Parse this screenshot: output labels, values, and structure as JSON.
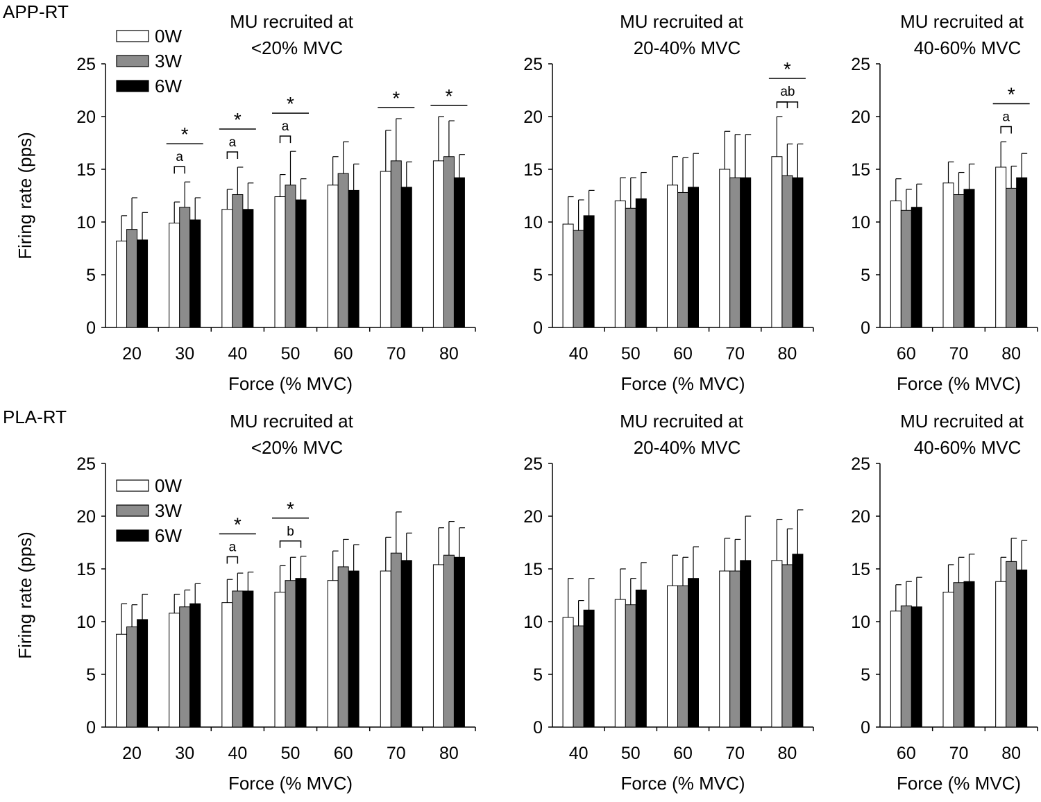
{
  "colors": {
    "0W": "#ffffff",
    "3W": "#8c8c8c",
    "6W": "#000000",
    "stroke": "#000000"
  },
  "rows": [
    {
      "label": "APP-RT"
    },
    {
      "label": "PLA-RT"
    }
  ],
  "chart_data": [
    {
      "type": "bar",
      "row": "APP-RT",
      "title": [
        "MU recruited at",
        "<20% MVC"
      ],
      "xlabel": "Force (% MVC)",
      "ylabel": "Firing rate (pps)",
      "ylim": [
        0,
        25
      ],
      "yticks": [
        0,
        5,
        10,
        15,
        20,
        25
      ],
      "categories": [
        "20",
        "30",
        "40",
        "50",
        "60",
        "70",
        "80"
      ],
      "legend": [
        "0W",
        "3W",
        "6W"
      ],
      "series": [
        {
          "name": "0W",
          "values": [
            8.2,
            9.9,
            11.2,
            12.4,
            13.5,
            14.8,
            15.8
          ],
          "errors": [
            2.4,
            2.0,
            1.9,
            2.1,
            2.7,
            3.9,
            4.2
          ]
        },
        {
          "name": "3W",
          "values": [
            9.3,
            11.4,
            12.6,
            13.5,
            14.6,
            15.8,
            16.2
          ],
          "errors": [
            3.0,
            2.4,
            2.6,
            3.2,
            3.0,
            4.0,
            3.4
          ]
        },
        {
          "name": "6W",
          "values": [
            8.3,
            10.2,
            11.2,
            12.1,
            13.0,
            13.3,
            14.2
          ],
          "errors": [
            2.6,
            2.1,
            2.5,
            2.0,
            2.5,
            2.4,
            2.2
          ]
        }
      ],
      "annotations": [
        {
          "cat": 1,
          "star": "*",
          "letter": "a",
          "pair": "0W-3W"
        },
        {
          "cat": 2,
          "star": "*",
          "letter": "a",
          "pair": "0W-3W"
        },
        {
          "cat": 3,
          "star": "*",
          "letter": "a",
          "pair": "0W-3W"
        },
        {
          "cat": 5,
          "star": "*"
        },
        {
          "cat": 6,
          "star": "*"
        }
      ]
    },
    {
      "type": "bar",
      "row": "APP-RT",
      "title": [
        "MU recruited at",
        "20-40% MVC"
      ],
      "xlabel": "Force (% MVC)",
      "ylabel": "",
      "ylim": [
        0,
        25
      ],
      "yticks": [
        0,
        5,
        10,
        15,
        20,
        25
      ],
      "categories": [
        "40",
        "50",
        "60",
        "70",
        "80"
      ],
      "series": [
        {
          "name": "0W",
          "values": [
            9.8,
            12.0,
            13.5,
            15.0,
            16.2
          ],
          "errors": [
            2.6,
            2.2,
            2.7,
            3.6,
            3.8
          ]
        },
        {
          "name": "3W",
          "values": [
            9.2,
            11.3,
            12.8,
            14.2,
            14.4
          ],
          "errors": [
            2.9,
            2.9,
            3.3,
            4.1,
            3.0
          ]
        },
        {
          "name": "6W",
          "values": [
            10.6,
            12.2,
            13.3,
            14.2,
            14.2
          ],
          "errors": [
            2.4,
            2.5,
            3.2,
            4.1,
            3.2
          ]
        }
      ],
      "annotations": [
        {
          "cat": 4,
          "star": "*",
          "letter": "ab",
          "pair": "double"
        }
      ]
    },
    {
      "type": "bar",
      "row": "APP-RT",
      "title": [
        "MU recruited at",
        "40-60% MVC"
      ],
      "xlabel": "Force (% MVC)",
      "ylabel": "",
      "ylim": [
        0,
        25
      ],
      "yticks": [
        0,
        5,
        10,
        15,
        20,
        25
      ],
      "categories": [
        "60",
        "70",
        "80"
      ],
      "series": [
        {
          "name": "0W",
          "values": [
            12.0,
            13.7,
            15.2
          ],
          "errors": [
            2.1,
            2.0,
            2.4
          ]
        },
        {
          "name": "3W",
          "values": [
            11.1,
            12.6,
            13.2
          ],
          "errors": [
            2.0,
            2.1,
            2.1
          ]
        },
        {
          "name": "6W",
          "values": [
            11.4,
            13.1,
            14.2
          ],
          "errors": [
            2.2,
            2.4,
            2.3
          ]
        }
      ],
      "annotations": [
        {
          "cat": 2,
          "star": "*",
          "letter": "a",
          "pair": "0W-3W"
        }
      ]
    },
    {
      "type": "bar",
      "row": "PLA-RT",
      "title": [
        "MU recruited at",
        "<20% MVC"
      ],
      "xlabel": "Force (% MVC)",
      "ylabel": "Firing rate (pps)",
      "ylim": [
        0,
        25
      ],
      "yticks": [
        0,
        5,
        10,
        15,
        20,
        25
      ],
      "categories": [
        "20",
        "30",
        "40",
        "50",
        "60",
        "70",
        "80"
      ],
      "legend": [
        "0W",
        "3W",
        "6W"
      ],
      "series": [
        {
          "name": "0W",
          "values": [
            8.8,
            10.8,
            11.8,
            12.8,
            13.9,
            14.8,
            15.4
          ],
          "errors": [
            2.9,
            1.8,
            2.2,
            2.5,
            2.8,
            3.2,
            3.5
          ]
        },
        {
          "name": "3W",
          "values": [
            9.5,
            11.4,
            12.9,
            13.9,
            15.2,
            16.5,
            16.3
          ],
          "errors": [
            2.1,
            1.6,
            1.7,
            2.2,
            2.6,
            3.9,
            3.2
          ]
        },
        {
          "name": "6W",
          "values": [
            10.2,
            11.7,
            12.9,
            14.1,
            14.8,
            15.8,
            16.1
          ],
          "errors": [
            2.4,
            1.9,
            1.8,
            2.1,
            2.5,
            2.6,
            2.8
          ]
        }
      ],
      "annotations": [
        {
          "cat": 2,
          "star": "*",
          "letter": "a",
          "pair": "0W-3W"
        },
        {
          "cat": 3,
          "star": "*",
          "letter": "b",
          "pair": "0W-6W"
        }
      ]
    },
    {
      "type": "bar",
      "row": "PLA-RT",
      "title": [
        "MU recruited at",
        "20-40% MVC"
      ],
      "xlabel": "Force (% MVC)",
      "ylabel": "",
      "ylim": [
        0,
        25
      ],
      "yticks": [
        0,
        5,
        10,
        15,
        20,
        25
      ],
      "categories": [
        "40",
        "50",
        "60",
        "70",
        "80"
      ],
      "series": [
        {
          "name": "0W",
          "values": [
            10.4,
            12.1,
            13.4,
            14.8,
            15.8
          ],
          "errors": [
            3.7,
            2.9,
            2.9,
            3.1,
            3.9
          ]
        },
        {
          "name": "3W",
          "values": [
            9.6,
            11.6,
            13.4,
            14.8,
            15.4
          ],
          "errors": [
            2.4,
            2.5,
            2.7,
            3.0,
            3.4
          ]
        },
        {
          "name": "6W",
          "values": [
            11.1,
            13.0,
            14.1,
            15.8,
            16.4
          ],
          "errors": [
            3.0,
            2.6,
            3.0,
            4.2,
            4.2
          ]
        }
      ],
      "annotations": []
    },
    {
      "type": "bar",
      "row": "PLA-RT",
      "title": [
        "MU recruited at",
        "40-60% MVC"
      ],
      "xlabel": "Force (% MVC)",
      "ylabel": "",
      "ylim": [
        0,
        25
      ],
      "yticks": [
        0,
        5,
        10,
        15,
        20,
        25
      ],
      "categories": [
        "60",
        "70",
        "80"
      ],
      "series": [
        {
          "name": "0W",
          "values": [
            11.0,
            12.8,
            13.8
          ],
          "errors": [
            2.5,
            2.6,
            2.3
          ]
        },
        {
          "name": "3W",
          "values": [
            11.5,
            13.7,
            15.7
          ],
          "errors": [
            2.3,
            2.4,
            2.2
          ]
        },
        {
          "name": "6W",
          "values": [
            11.4,
            13.8,
            14.9
          ],
          "errors": [
            2.8,
            2.6,
            2.8
          ]
        }
      ],
      "annotations": []
    }
  ]
}
